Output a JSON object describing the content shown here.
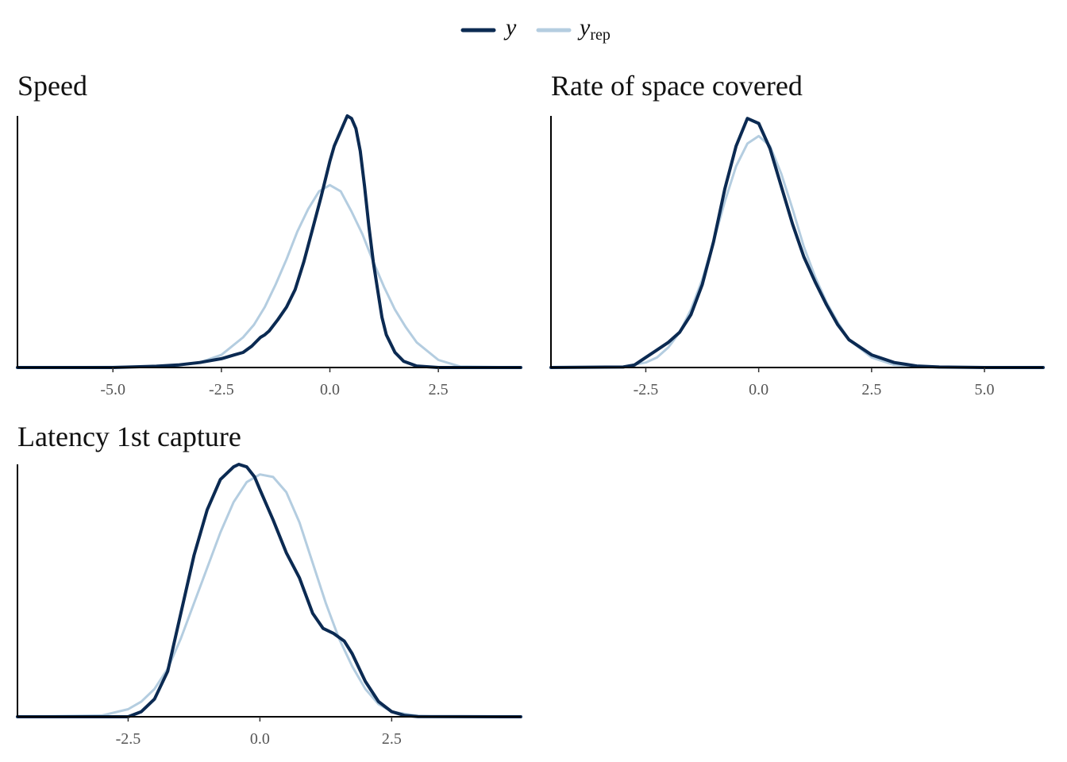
{
  "legend": {
    "y_label": "y",
    "yrep_label": "y",
    "yrep_subscript": "rep",
    "y_color": "#0b2a52",
    "yrep_color": "#b4cde0"
  },
  "chart_data": [
    {
      "type": "line",
      "title": "Speed",
      "xlim": [
        -7.2,
        4.4
      ],
      "ylim": [
        0,
        1
      ],
      "xticks": [
        -5.0,
        -2.5,
        0.0,
        2.5
      ],
      "xtick_labels": [
        "-5.0",
        "-2.5",
        "0.0",
        "2.5"
      ],
      "y_values_note": "",
      "series": [
        {
          "name": "y",
          "role": "observed",
          "color": "#0b2a52",
          "x": [
            -7.2,
            -5.0,
            -4.0,
            -3.5,
            -3.0,
            -2.5,
            -2.2,
            -2.0,
            -1.8,
            -1.6,
            -1.5,
            -1.4,
            -1.2,
            -1.0,
            -0.8,
            -0.6,
            -0.4,
            -0.2,
            0.0,
            0.1,
            0.2,
            0.3,
            0.4,
            0.5,
            0.6,
            0.7,
            0.8,
            0.9,
            1.0,
            1.1,
            1.2,
            1.3,
            1.5,
            1.7,
            2.0,
            2.5,
            4.4
          ],
          "values": [
            0.0,
            0.0,
            0.005,
            0.01,
            0.02,
            0.035,
            0.05,
            0.06,
            0.085,
            0.12,
            0.13,
            0.145,
            0.19,
            0.24,
            0.31,
            0.42,
            0.55,
            0.68,
            0.82,
            0.88,
            0.92,
            0.96,
            1.0,
            0.99,
            0.95,
            0.86,
            0.72,
            0.56,
            0.42,
            0.31,
            0.2,
            0.13,
            0.06,
            0.025,
            0.006,
            0.0,
            0.0
          ]
        },
        {
          "name": "y_rep",
          "role": "replicated",
          "color": "#b4cde0",
          "x": [
            -7.2,
            -4.0,
            -3.5,
            -3.0,
            -2.5,
            -2.0,
            -1.75,
            -1.5,
            -1.25,
            -1.0,
            -0.75,
            -0.5,
            -0.25,
            0.0,
            0.25,
            0.5,
            0.75,
            1.0,
            1.25,
            1.5,
            1.75,
            2.0,
            2.5,
            3.0,
            4.4
          ],
          "values": [
            0.0,
            0.003,
            0.008,
            0.02,
            0.05,
            0.12,
            0.17,
            0.24,
            0.33,
            0.43,
            0.54,
            0.63,
            0.7,
            0.725,
            0.7,
            0.62,
            0.53,
            0.42,
            0.32,
            0.23,
            0.16,
            0.1,
            0.03,
            0.004,
            0.0
          ]
        }
      ]
    },
    {
      "type": "line",
      "title": "Rate of space covered",
      "xlim": [
        -4.6,
        6.3
      ],
      "ylim": [
        0,
        1
      ],
      "xticks": [
        -2.5,
        0.0,
        2.5,
        5.0
      ],
      "xtick_labels": [
        "-2.5",
        "0.0",
        "2.5",
        "5.0"
      ],
      "series": [
        {
          "name": "y",
          "role": "observed",
          "color": "#0b2a52",
          "x": [
            -4.6,
            -3.0,
            -2.75,
            -2.5,
            -2.25,
            -2.0,
            -1.75,
            -1.5,
            -1.25,
            -1.0,
            -0.75,
            -0.5,
            -0.25,
            0.0,
            0.25,
            0.5,
            0.75,
            1.0,
            1.25,
            1.5,
            1.75,
            2.0,
            2.5,
            3.0,
            3.5,
            4.0,
            5.0,
            6.3
          ],
          "values": [
            0.0,
            0.002,
            0.01,
            0.04,
            0.07,
            0.1,
            0.14,
            0.21,
            0.33,
            0.5,
            0.71,
            0.88,
            0.99,
            0.97,
            0.87,
            0.72,
            0.57,
            0.44,
            0.34,
            0.25,
            0.17,
            0.11,
            0.05,
            0.02,
            0.006,
            0.002,
            0.0,
            0.0
          ]
        },
        {
          "name": "y_rep",
          "role": "replicated",
          "color": "#b4cde0",
          "x": [
            -4.6,
            -3.0,
            -2.5,
            -2.25,
            -2.0,
            -1.75,
            -1.5,
            -1.25,
            -1.0,
            -0.75,
            -0.5,
            -0.25,
            0.0,
            0.25,
            0.5,
            0.75,
            1.0,
            1.25,
            1.5,
            1.75,
            2.0,
            2.5,
            3.0,
            3.5,
            4.0,
            6.3
          ],
          "values": [
            0.0,
            0.003,
            0.02,
            0.04,
            0.08,
            0.14,
            0.23,
            0.35,
            0.5,
            0.66,
            0.8,
            0.89,
            0.92,
            0.88,
            0.77,
            0.63,
            0.48,
            0.36,
            0.26,
            0.18,
            0.11,
            0.04,
            0.01,
            0.003,
            0.0,
            0.0
          ]
        }
      ]
    },
    {
      "type": "line",
      "title": "Latency 1st capture",
      "xlim": [
        -4.6,
        4.95
      ],
      "ylim": [
        0,
        1
      ],
      "xticks": [
        -2.5,
        0.0,
        2.5
      ],
      "xtick_labels": [
        "-2.5",
        "0.0",
        "2.5"
      ],
      "series": [
        {
          "name": "y",
          "role": "observed",
          "color": "#0b2a52",
          "x": [
            -4.6,
            -2.5,
            -2.25,
            -2.0,
            -1.75,
            -1.5,
            -1.25,
            -1.0,
            -0.75,
            -0.5,
            -0.4,
            -0.25,
            -0.1,
            0.0,
            0.25,
            0.5,
            0.75,
            1.0,
            1.2,
            1.4,
            1.6,
            1.75,
            2.0,
            2.25,
            2.5,
            2.75,
            3.0,
            4.95
          ],
          "values": [
            0.0,
            0.0,
            0.02,
            0.07,
            0.18,
            0.41,
            0.64,
            0.82,
            0.94,
            0.99,
            1.0,
            0.99,
            0.95,
            0.9,
            0.78,
            0.65,
            0.55,
            0.41,
            0.35,
            0.33,
            0.3,
            0.25,
            0.14,
            0.06,
            0.02,
            0.005,
            0.001,
            0.0
          ]
        },
        {
          "name": "y_rep",
          "role": "replicated",
          "color": "#b4cde0",
          "x": [
            -4.6,
            -3.0,
            -2.5,
            -2.25,
            -2.0,
            -1.75,
            -1.5,
            -1.25,
            -1.0,
            -0.75,
            -0.5,
            -0.25,
            0.0,
            0.25,
            0.5,
            0.75,
            1.0,
            1.25,
            1.5,
            1.75,
            2.0,
            2.25,
            2.5,
            3.0,
            3.5,
            4.95
          ],
          "values": [
            0.0,
            0.005,
            0.03,
            0.06,
            0.11,
            0.19,
            0.31,
            0.45,
            0.59,
            0.73,
            0.85,
            0.93,
            0.96,
            0.95,
            0.89,
            0.77,
            0.61,
            0.45,
            0.31,
            0.2,
            0.11,
            0.05,
            0.02,
            0.003,
            0.0,
            0.0
          ]
        }
      ]
    }
  ]
}
